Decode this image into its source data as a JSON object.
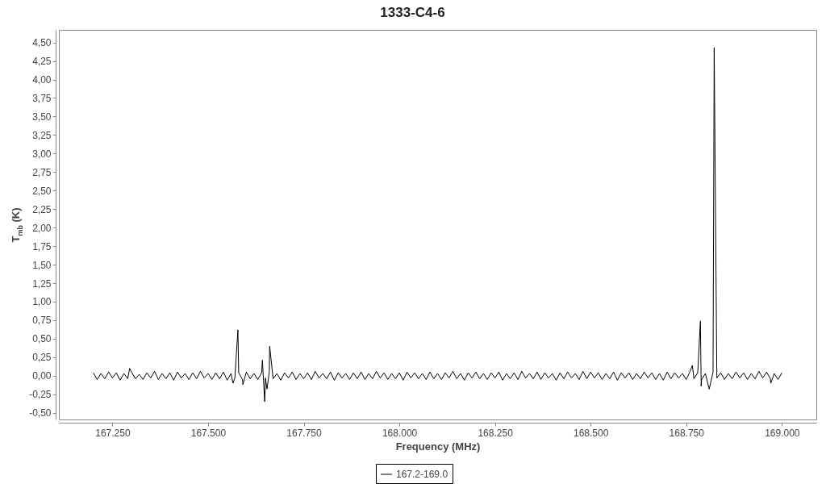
{
  "chart_data": {
    "type": "line",
    "title": "1333-C4-6",
    "xlabel": "Frequency (MHz)",
    "ylabel": "T$_{mb}$ (K)",
    "xlim": [
      167110,
      169090
    ],
    "ylim": [
      -0.59,
      4.67
    ],
    "xticks": [
      {
        "value": 167250,
        "label": "167.250"
      },
      {
        "value": 167500,
        "label": "167.500"
      },
      {
        "value": 167750,
        "label": "167.750"
      },
      {
        "value": 168000,
        "label": "168.000"
      },
      {
        "value": 168250,
        "label": "168.250"
      },
      {
        "value": 168500,
        "label": "168.500"
      },
      {
        "value": 168750,
        "label": "168.750"
      },
      {
        "value": 169000,
        "label": "169.000"
      }
    ],
    "yticks": [
      {
        "value": -0.5,
        "label": "-0,50"
      },
      {
        "value": -0.25,
        "label": "-0,25"
      },
      {
        "value": 0,
        "label": "0,00"
      },
      {
        "value": 0.25,
        "label": "0,25"
      },
      {
        "value": 0.5,
        "label": "0,50"
      },
      {
        "value": 0.75,
        "label": "0,75"
      },
      {
        "value": 1,
        "label": "1,00"
      },
      {
        "value": 1.25,
        "label": "1,25"
      },
      {
        "value": 1.5,
        "label": "1,50"
      },
      {
        "value": 1.75,
        "label": "1,75"
      },
      {
        "value": 2,
        "label": "2,00"
      },
      {
        "value": 2.25,
        "label": "2,25"
      },
      {
        "value": 2.5,
        "label": "2,50"
      },
      {
        "value": 2.75,
        "label": "2,75"
      },
      {
        "value": 3,
        "label": "3,00"
      },
      {
        "value": 3.25,
        "label": "3,25"
      },
      {
        "value": 3.5,
        "label": "3,50"
      },
      {
        "value": 3.75,
        "label": "3,75"
      },
      {
        "value": 4,
        "label": "4,00"
      },
      {
        "value": 4.25,
        "label": "4,25"
      },
      {
        "value": 4.5,
        "label": "4,50"
      }
    ],
    "legend": "bottom",
    "x": [
      167200,
      167210,
      167220,
      167230,
      167240,
      167250,
      167260,
      167270,
      167280,
      167290,
      167295,
      167300,
      167310,
      167320,
      167330,
      167340,
      167350,
      167360,
      167370,
      167380,
      167390,
      167400,
      167410,
      167420,
      167430,
      167440,
      167450,
      167460,
      167470,
      167480,
      167490,
      167500,
      167510,
      167520,
      167530,
      167540,
      167550,
      167560,
      167565,
      167570,
      167578,
      167580,
      167590,
      167591,
      167600,
      167610,
      167620,
      167630,
      167640,
      167642,
      167648,
      167650,
      167654,
      167660,
      167661,
      167670,
      167680,
      167690,
      167700,
      167710,
      167720,
      167730,
      167740,
      167750,
      167760,
      167770,
      167780,
      167790,
      167800,
      167810,
      167820,
      167830,
      167840,
      167850,
      167860,
      167870,
      167880,
      167890,
      167900,
      167910,
      167920,
      167930,
      167940,
      167950,
      167960,
      167970,
      167980,
      167990,
      168000,
      168010,
      168020,
      168030,
      168040,
      168050,
      168060,
      168070,
      168080,
      168090,
      168100,
      168110,
      168120,
      168130,
      168140,
      168150,
      168160,
      168170,
      168180,
      168190,
      168200,
      168210,
      168220,
      168230,
      168240,
      168250,
      168260,
      168270,
      168280,
      168290,
      168300,
      168310,
      168320,
      168330,
      168340,
      168350,
      168360,
      168370,
      168380,
      168390,
      168400,
      168410,
      168420,
      168430,
      168440,
      168450,
      168460,
      168470,
      168480,
      168490,
      168500,
      168510,
      168520,
      168530,
      168540,
      168550,
      168560,
      168570,
      168580,
      168590,
      168600,
      168610,
      168620,
      168630,
      168640,
      168650,
      168660,
      168670,
      168680,
      168690,
      168700,
      168710,
      168720,
      168730,
      168740,
      168750,
      168760,
      168766,
      168770,
      168780,
      168787,
      168789,
      168790,
      168800,
      168810,
      168820,
      168823,
      168830,
      168840,
      168850,
      168860,
      168870,
      168880,
      168890,
      168900,
      168910,
      168920,
      168930,
      168940,
      168950,
      168960,
      168970,
      168971,
      168980,
      168990,
      169000
    ],
    "series": [
      {
        "name": "167.2-169.0",
        "color": "#000000",
        "values": [
          0.04,
          -0.05,
          0.03,
          -0.04,
          0.05,
          -0.03,
          0.04,
          -0.06,
          0.03,
          -0.04,
          0.1,
          0.05,
          -0.04,
          0.02,
          -0.05,
          0.04,
          -0.03,
          0.06,
          -0.05,
          0.03,
          -0.04,
          0.04,
          -0.06,
          0.05,
          -0.03,
          0.03,
          -0.05,
          0.04,
          -0.04,
          0.06,
          -0.03,
          0.03,
          -0.05,
          0.04,
          -0.04,
          0.05,
          -0.06,
          0.03,
          -0.1,
          -0.03,
          0.62,
          0.04,
          -0.05,
          -0.12,
          0.05,
          -0.04,
          0.03,
          -0.05,
          0.04,
          0.21,
          -0.35,
          -0.03,
          -0.18,
          0.05,
          0.4,
          -0.04,
          0.03,
          -0.06,
          0.04,
          -0.03,
          0.05,
          -0.05,
          0.03,
          -0.04,
          0.04,
          -0.05,
          0.06,
          -0.03,
          0.03,
          -0.04,
          0.05,
          -0.06,
          0.04,
          -0.03,
          0.03,
          -0.05,
          0.04,
          -0.04,
          0.05,
          -0.05,
          0.03,
          -0.04,
          0.06,
          -0.03,
          0.04,
          -0.05,
          0.03,
          -0.04,
          0.04,
          -0.06,
          0.05,
          -0.03,
          0.04,
          -0.04,
          0.03,
          -0.05,
          0.05,
          -0.04,
          0.03,
          -0.05,
          0.04,
          -0.03,
          0.06,
          -0.04,
          0.03,
          -0.06,
          0.04,
          -0.03,
          0.05,
          -0.04,
          0.03,
          -0.05,
          0.04,
          -0.03,
          0.05,
          -0.06,
          0.03,
          -0.04,
          0.04,
          -0.05,
          0.06,
          -0.03,
          0.03,
          -0.04,
          0.05,
          -0.05,
          0.04,
          -0.03,
          0.03,
          -0.06,
          0.04,
          -0.04,
          0.05,
          -0.03,
          0.03,
          -0.05,
          0.06,
          -0.04,
          0.05,
          -0.03,
          0.04,
          -0.05,
          0.03,
          -0.04,
          0.05,
          -0.06,
          0.04,
          -0.03,
          0.04,
          -0.05,
          0.03,
          -0.04,
          0.05,
          -0.03,
          0.04,
          -0.05,
          0.03,
          -0.06,
          0.05,
          -0.04,
          0.04,
          -0.03,
          0.03,
          -0.05,
          0.06,
          0.14,
          -0.04,
          0.04,
          0.74,
          -0.14,
          -0.05,
          0.03,
          -0.18,
          0.05,
          4.43,
          -0.03,
          0.04,
          -0.05,
          0.03,
          -0.04,
          0.05,
          -0.03,
          0.04,
          -0.05,
          0.03,
          -0.04,
          0.06,
          -0.03,
          0.05,
          -0.04,
          -0.1,
          0.03,
          -0.05,
          0.04
        ]
      }
    ]
  }
}
